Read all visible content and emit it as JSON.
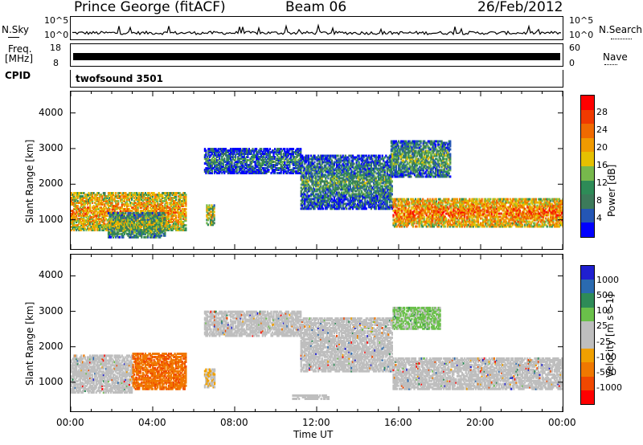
{
  "header": {
    "station": "Prince George (fitACF)",
    "beam": "Beam 06",
    "date": "26/Feb/2012"
  },
  "left_labels": {
    "nsky": "N.Sky",
    "nsky_hi": "10^5",
    "nsky_lo": "10^0",
    "freq_line1": "Freq.",
    "freq_line2": "[MHz]",
    "freq_hi": "18",
    "freq_lo": "8",
    "cpid": "CPID"
  },
  "right_labels": {
    "nsearch": "N.Search",
    "nsearch_hi": "10^5",
    "nsearch_lo": "10^0",
    "nave": "Nave",
    "nave_hi": "60",
    "nave_lo": "0"
  },
  "cpid_text": "twofsound 3501",
  "colors": {
    "power_scale": [
      "#0000ff",
      "#2456b4",
      "#3c7a5a",
      "#2e8b57",
      "#77b84c",
      "#e6c000",
      "#f09a00",
      "#f06a00",
      "#f03a00",
      "#ff0000"
    ],
    "velocity_scale": [
      "#1f1fd0",
      "#2a6ab0",
      "#2e8b57",
      "#6ac04a",
      "#bebebe",
      "#bebebe",
      "#f0a000",
      "#f07800",
      "#f04800",
      "#ff0000"
    ],
    "ground_scatter": "#bebebe"
  },
  "chart_data": [
    {
      "type": "heatmap",
      "panel": "power",
      "ylabel": "Slant Range [km]",
      "xlabel": "",
      "x_ticks": [
        "00:00",
        "04:00",
        "08:00",
        "12:00",
        "16:00",
        "20:00",
        "00:00"
      ],
      "y_ticks": [
        "1000",
        "2000",
        "3000",
        "4000"
      ],
      "ylim": [
        180,
        4600
      ],
      "xlim_hours": [
        0,
        24
      ],
      "colorbar_label": "Power [dB]",
      "colorbar_ticks": [
        "4",
        "8",
        "12",
        "16",
        "20",
        "24",
        "28"
      ],
      "colorbar_range": [
        0,
        30
      ],
      "regions": [
        {
          "t0": 0.0,
          "t1": 5.6,
          "r0": 700,
          "r1": 1750,
          "level": 22
        },
        {
          "t0": 1.8,
          "t1": 4.6,
          "r0": 500,
          "r1": 1200,
          "level": 14
        },
        {
          "t0": 6.6,
          "t1": 7.0,
          "r0": 850,
          "r1": 1400,
          "level": 18
        },
        {
          "t0": 6.5,
          "t1": 11.2,
          "r0": 2300,
          "r1": 3000,
          "level": 8
        },
        {
          "t0": 11.2,
          "t1": 15.7,
          "r0": 1300,
          "r1": 2800,
          "level": 10
        },
        {
          "t0": 15.7,
          "t1": 24.0,
          "r0": 800,
          "r1": 1600,
          "level": 24
        },
        {
          "t0": 15.6,
          "t1": 18.5,
          "r0": 2200,
          "r1": 3200,
          "level": 12
        }
      ]
    },
    {
      "type": "heatmap",
      "panel": "velocity",
      "ylabel": "Slant Range [km]",
      "xlabel": "Time UT",
      "x_ticks": [
        "00:00",
        "04:00",
        "08:00",
        "12:00",
        "16:00",
        "20:00",
        "00:00"
      ],
      "y_ticks": [
        "1000",
        "2000",
        "3000",
        "4000"
      ],
      "ylim": [
        180,
        4600
      ],
      "xlim_hours": [
        0,
        24
      ],
      "colorbar_label": "Velocity [m s^-1]",
      "colorbar_ticks": [
        "1000",
        "500",
        "100",
        "25",
        "-25",
        "-100",
        "-500",
        "-1000"
      ],
      "regions": [
        {
          "t0": 0.0,
          "t1": 3.0,
          "r0": 700,
          "r1": 1750,
          "level": "gs"
        },
        {
          "t0": 3.0,
          "t1": 5.6,
          "r0": 800,
          "r1": 1800,
          "level": -600
        },
        {
          "t0": 6.5,
          "t1": 7.0,
          "r0": 850,
          "r1": 1350,
          "level": -200
        },
        {
          "t0": 6.5,
          "t1": 11.2,
          "r0": 2300,
          "r1": 3000,
          "level": "gs"
        },
        {
          "t0": 11.2,
          "t1": 15.7,
          "r0": 1300,
          "r1": 2800,
          "level": "gs"
        },
        {
          "t0": 15.7,
          "t1": 24.0,
          "r0": 800,
          "r1": 1700,
          "level": "gs"
        },
        {
          "t0": 15.7,
          "t1": 18.0,
          "r0": 2500,
          "r1": 3100,
          "level": 300
        },
        {
          "t0": 10.8,
          "t1": 12.6,
          "r0": 520,
          "r1": 650,
          "level": 60
        }
      ]
    }
  ]
}
